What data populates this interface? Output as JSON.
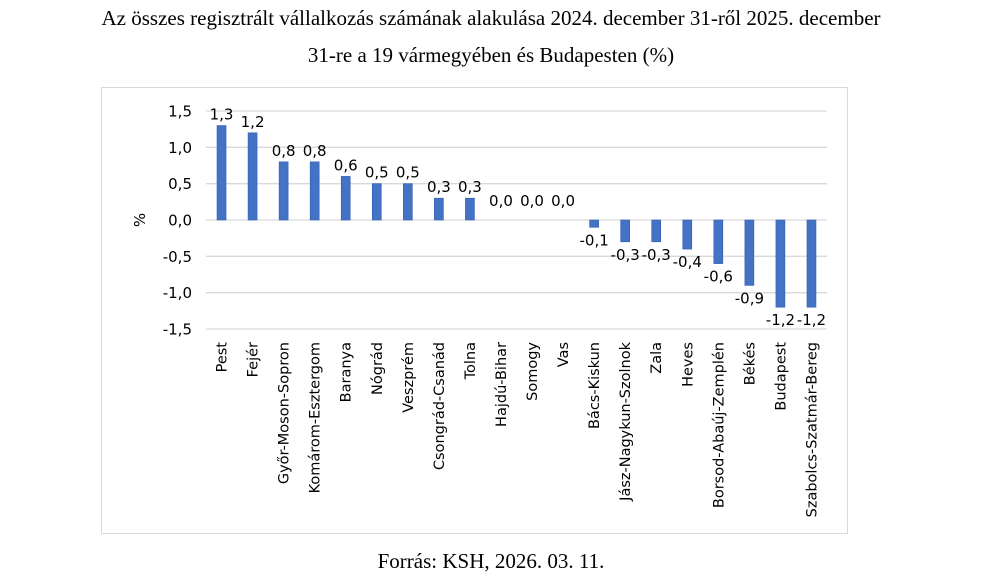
{
  "title_line1": "Az összes regisztrált vállalkozás számának alakulása 2024. december 31-ről 2025. december",
  "title_line2": "31-re a 19 vármegyében és Budapesten (%)",
  "source": "Forrás: KSH, 2026. 03. 11.",
  "colors": {
    "bar": "#4472c4",
    "bar_edge": "#2f5fb3",
    "grid": "#d9d9d9",
    "border": "#d9d9d9"
  },
  "chart_data": {
    "type": "bar",
    "title": "Az összes regisztrált vállalkozás számának alakulása 2024. december 31-ről 2025. december 31-re a 19 vármegyében és Budapesten (%)",
    "xlabel": "",
    "ylabel": "%",
    "ylim": [
      -1.5,
      1.5
    ],
    "yticks": [
      1.5,
      1.0,
      0.5,
      0.0,
      -0.5,
      -1.0,
      -1.5
    ],
    "ytick_labels": [
      "1,5",
      "1,0",
      "0,5",
      "0,0",
      "-0,5",
      "-1,0",
      "-1,5"
    ],
    "grid": true,
    "legend": "none",
    "categories": [
      "Pest",
      "Fejér",
      "Győr-Moson-Sopron",
      "Komárom-Esztergom",
      "Baranya",
      "Nógrád",
      "Veszprém",
      "Csongrád-Csanád",
      "Tolna",
      "Hajdú-Bihar",
      "Somogy",
      "Vas",
      "Bács-Kiskun",
      "Jász-Nagykun-Szolnok",
      "Zala",
      "Heves",
      "Borsod-Abaúj-Zemplén",
      "Békés",
      "Budapest",
      "Szabolcs-Szatmár-Bereg"
    ],
    "values": [
      1.3,
      1.2,
      0.8,
      0.8,
      0.6,
      0.5,
      0.5,
      0.3,
      0.3,
      0.0,
      0.0,
      0.0,
      -0.1,
      -0.3,
      -0.3,
      -0.4,
      -0.6,
      -0.9,
      -1.2,
      -1.2
    ],
    "data_labels": [
      "1,3",
      "1,2",
      "0,8",
      "0,8",
      "0,6",
      "0,5",
      "0,5",
      "0,3",
      "0,3",
      "0,0",
      "0,0",
      "0,0",
      "-0,1",
      "-0,3",
      "-0,3",
      "-0,4",
      "-0,6",
      "-0,9",
      "-1,2",
      "-1,2"
    ]
  }
}
